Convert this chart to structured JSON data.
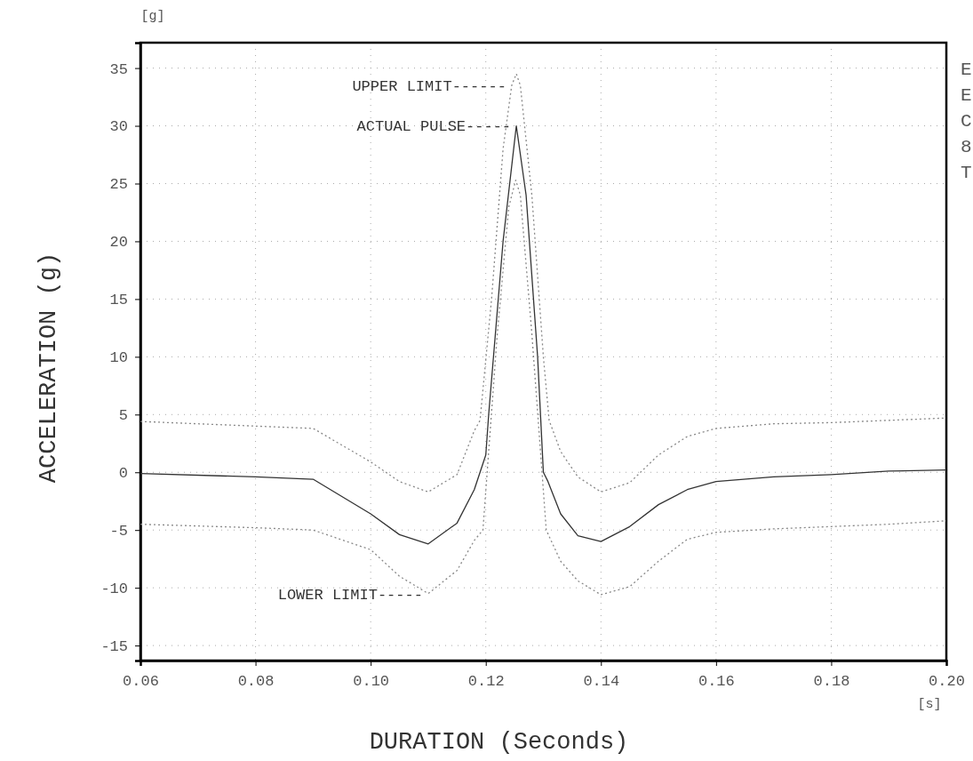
{
  "chart_data": {
    "type": "line",
    "xlabel": "DURATION (Seconds)",
    "ylabel": "ACCELERATION (g)",
    "xlim": [
      0.06,
      0.2
    ],
    "xticks": [
      {
        "value": 0.06,
        "label": "0.06"
      },
      {
        "value": 0.08,
        "label": "0.08"
      },
      {
        "value": 0.1,
        "label": "0.10"
      },
      {
        "value": 0.12,
        "label": "0.12"
      },
      {
        "value": 0.14,
        "label": "0.14"
      },
      {
        "value": 0.16,
        "label": "0.16"
      },
      {
        "value": 0.18,
        "label": "0.18"
      },
      {
        "value": 0.2,
        "label": "0.20"
      }
    ],
    "ylim": [
      -16.3,
      37.2
    ],
    "yticks": [
      -15,
      -10,
      -5,
      0,
      5,
      10,
      15,
      20,
      25,
      30,
      35
    ],
    "grid": true,
    "marker": "none",
    "series": [
      {
        "color": "#888888",
        "line_style": "dotted",
        "x": [
          0.06,
          0.08,
          0.09,
          0.1,
          0.105,
          0.11,
          0.115,
          0.118,
          0.119,
          0.121,
          0.123,
          0.1245,
          0.1253,
          0.126,
          0.128,
          0.13,
          0.131,
          0.133,
          0.136,
          0.14,
          0.145,
          0.15,
          0.155,
          0.16,
          0.17,
          0.18,
          0.19,
          0.2
        ],
        "values": [
          4.4,
          4,
          3.8,
          0.9,
          -0.8,
          -1.7,
          -0.2,
          3.6,
          4.5,
          15,
          28,
          33.5,
          34.5,
          33.5,
          24,
          10,
          4.5,
          1.8,
          -0.4,
          -1.7,
          -0.9,
          1.5,
          3.1,
          3.8,
          4.2,
          4.3,
          4.5,
          4.7
        ]
      },
      {
        "color": "#333333",
        "line_style": "solid",
        "x": [
          0.06,
          0.08,
          0.09,
          0.1,
          0.105,
          0.11,
          0.115,
          0.118,
          0.12,
          0.1205,
          0.123,
          0.1253,
          0.127,
          0.129,
          0.13,
          0.1308,
          0.133,
          0.136,
          0.14,
          0.145,
          0.15,
          0.155,
          0.16,
          0.17,
          0.18,
          0.19,
          0.2
        ],
        "values": [
          -0.1,
          -0.4,
          -0.6,
          -3.6,
          -5.4,
          -6.2,
          -4.4,
          -1.5,
          1.5,
          5,
          20,
          30,
          24,
          10,
          0,
          -0.8,
          -3.6,
          -5.5,
          -6,
          -4.7,
          -2.8,
          -1.5,
          -0.8,
          -0.4,
          -0.2,
          0.1,
          0.2
        ]
      },
      {
        "color": "#888888",
        "line_style": "dotted",
        "x": [
          0.06,
          0.08,
          0.09,
          0.1,
          0.105,
          0.11,
          0.115,
          0.118,
          0.1195,
          0.122,
          0.124,
          0.1252,
          0.126,
          0.128,
          0.1305,
          0.133,
          0.136,
          0.14,
          0.145,
          0.15,
          0.155,
          0.16,
          0.17,
          0.18,
          0.19,
          0.2
        ],
        "values": [
          -4.5,
          -4.8,
          -5,
          -6.7,
          -9,
          -10.5,
          -8.5,
          -5.9,
          -5,
          12,
          23,
          25.3,
          24,
          12,
          -5,
          -7.7,
          -9.4,
          -10.6,
          -9.9,
          -7.7,
          -5.8,
          -5.2,
          -4.9,
          -4.7,
          -4.5,
          -4.2
        ]
      }
    ],
    "annotations": [
      {
        "text": "UPPER LIMIT------",
        "x": 0.1245,
        "y": 33.5
      },
      {
        "text": "ACTUAL PULSE-----",
        "x": 0.1253,
        "y": 30
      },
      {
        "text": "LOWER LIMIT-----",
        "x": 0.11,
        "y": -10.5
      },
      "[g]",
      "[s]",
      "E",
      "E",
      "C",
      "8",
      "T"
    ]
  }
}
